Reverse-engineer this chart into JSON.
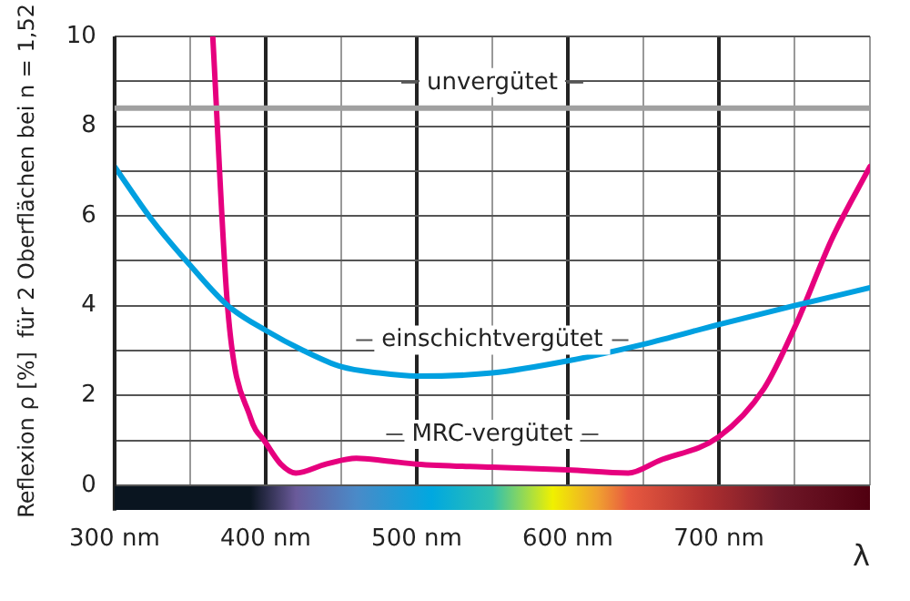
{
  "chart_data": {
    "type": "line",
    "ylabel": "Reflexion ρ [%]  für 2 Oberflächen bei n = 1,52",
    "xlabel": "λ",
    "series": [
      {
        "name": "einschichtvergütet",
        "color": "#00a0e0",
        "x": [
          300,
          325,
          350,
          375,
          400,
          425,
          450,
          475,
          500,
          550,
          600,
          650,
          700,
          750,
          800
        ],
        "values": [
          7.1,
          5.9,
          4.9,
          4.0,
          3.45,
          3.0,
          2.64,
          2.5,
          2.43,
          2.5,
          2.77,
          3.14,
          3.58,
          4.0,
          4.4
        ]
      },
      {
        "name": "MRC-vergütet",
        "color": "#e6007e",
        "x": [
          365,
          375,
          390,
          400,
          410,
          420,
          440,
          460,
          480,
          500,
          550,
          600,
          640,
          660,
          700,
          730,
          750,
          775,
          800
        ],
        "values": [
          10,
          3.9,
          1.5,
          0.95,
          0.47,
          0.27,
          0.47,
          0.6,
          0.54,
          0.47,
          0.4,
          0.34,
          0.27,
          0.54,
          1.08,
          2.16,
          3.5,
          5.5,
          7.1
        ]
      }
    ],
    "ref_lines": [
      {
        "axis": "y",
        "value": 8.4,
        "label": "unvergütet",
        "color": "#a0a0a0"
      }
    ],
    "xlim": [
      300,
      800
    ],
    "xticks": [
      {
        "value": 300,
        "label": "300 nm"
      },
      {
        "value": 350,
        "label": null
      },
      {
        "value": 400,
        "label": "400 nm"
      },
      {
        "value": 450,
        "label": null
      },
      {
        "value": 500,
        "label": "500 nm"
      },
      {
        "value": 550,
        "label": null
      },
      {
        "value": 600,
        "label": "600 nm"
      },
      {
        "value": 650,
        "label": null
      },
      {
        "value": 700,
        "label": "700 nm"
      },
      {
        "value": 750,
        "label": null
      },
      {
        "value": 800,
        "label": null
      }
    ],
    "ylim": [
      0,
      10
    ],
    "yticks": [
      0,
      {
        "value": 1,
        "label": null
      },
      2,
      {
        "value": 3,
        "label": null
      },
      4,
      {
        "value": 5,
        "label": null
      },
      6,
      {
        "value": 7,
        "label": null
      },
      8,
      {
        "value": 9,
        "label": null
      },
      10
    ],
    "grid": true,
    "legend": false,
    "marker": "none",
    "line_style": "solid"
  }
}
